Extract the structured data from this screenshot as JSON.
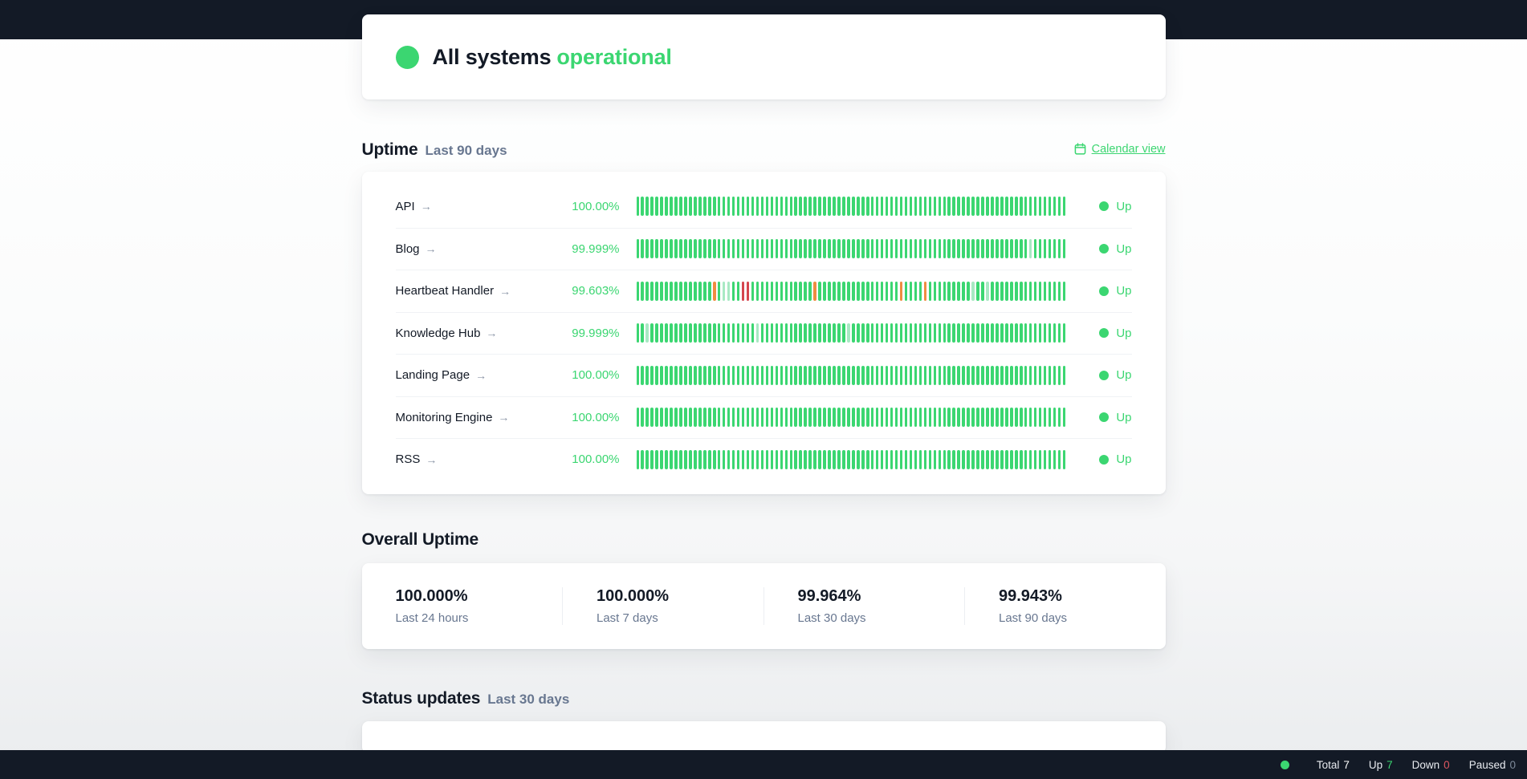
{
  "status_banner": {
    "text_main": "All systems",
    "text_accent": "operational"
  },
  "uptime_section": {
    "title": "Uptime",
    "subtitle": "Last 90 days",
    "calendar_link_label": "Calendar view",
    "services": [
      {
        "name": "API",
        "uptime_pct": "100.00%",
        "status_label": "Up",
        "days": 90,
        "down_days": [],
        "degraded_days": [],
        "partial_days": []
      },
      {
        "name": "Blog",
        "uptime_pct": "99.999%",
        "status_label": "Up",
        "days": 90,
        "down_days": [],
        "degraded_days": [],
        "partial_days": [
          82
        ]
      },
      {
        "name": "Heartbeat Handler",
        "uptime_pct": "99.603%",
        "status_label": "Up",
        "days": 90,
        "down_days": [
          22,
          23
        ],
        "degraded_days": [
          16,
          37,
          55,
          60
        ],
        "partial_days": [
          18,
          19,
          70,
          73
        ]
      },
      {
        "name": "Knowledge Hub",
        "uptime_pct": "99.999%",
        "status_label": "Up",
        "days": 90,
        "down_days": [],
        "degraded_days": [],
        "partial_days": [
          2,
          25,
          44
        ]
      },
      {
        "name": "Landing Page",
        "uptime_pct": "100.00%",
        "status_label": "Up",
        "days": 90,
        "down_days": [],
        "degraded_days": [],
        "partial_days": []
      },
      {
        "name": "Monitoring Engine",
        "uptime_pct": "100.00%",
        "status_label": "Up",
        "days": 90,
        "down_days": [],
        "degraded_days": [],
        "partial_days": []
      },
      {
        "name": "RSS",
        "uptime_pct": "100.00%",
        "status_label": "Up",
        "days": 90,
        "down_days": [],
        "degraded_days": [],
        "partial_days": []
      }
    ]
  },
  "overall_uptime": {
    "title": "Overall Uptime",
    "stats": [
      {
        "value": "100.000%",
        "label": "Last 24 hours"
      },
      {
        "value": "100.000%",
        "label": "Last 7 days"
      },
      {
        "value": "99.964%",
        "label": "Last 30 days"
      },
      {
        "value": "99.943%",
        "label": "Last 90 days"
      }
    ]
  },
  "status_updates": {
    "title": "Status updates",
    "subtitle": "Last 30 days"
  },
  "footer": {
    "stats": [
      {
        "label": "Total",
        "value": "7",
        "value_color": "#ffffff"
      },
      {
        "label": "Up",
        "value": "7",
        "value_color": "#3bd671"
      },
      {
        "label": "Down",
        "value": "0",
        "value_color": "#de5760"
      },
      {
        "label": "Paused",
        "value": "0",
        "value_color": "#7e8a9a"
      }
    ]
  },
  "colors": {
    "accent_green": "#3bd671",
    "bar_up": "#3bd671",
    "bar_partial": "#a8e9c3",
    "bar_degraded": "#ef8d41",
    "bar_down": "#d5454e",
    "navy": "#131a26",
    "muted_text": "#687790"
  }
}
